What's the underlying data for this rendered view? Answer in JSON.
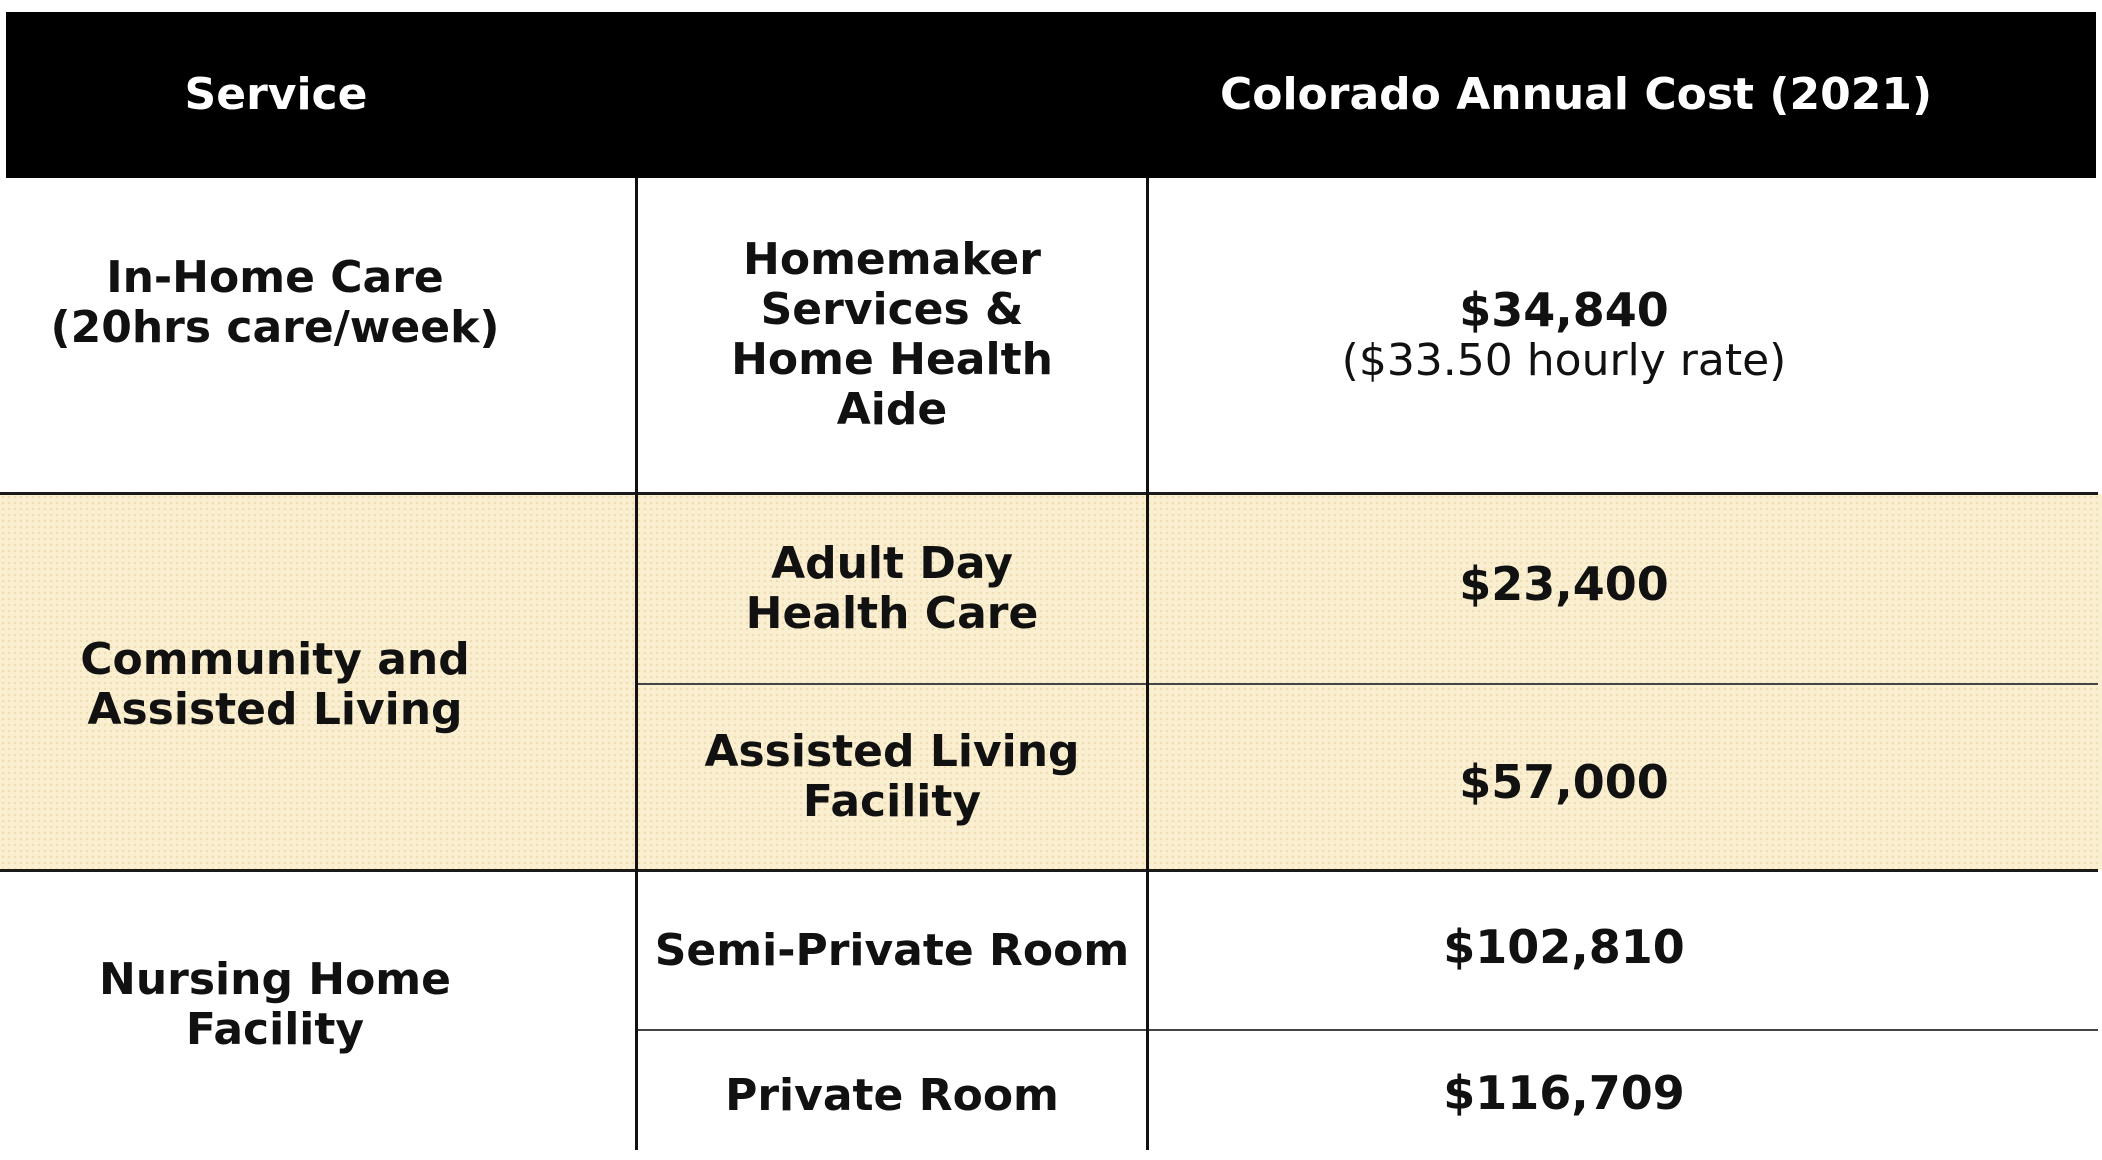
{
  "header": {
    "service_label": "Service",
    "cost_label": "Colorado Annual Cost (2021)"
  },
  "rows": {
    "in_home": {
      "category": "In-Home Care\n(20hrs care/week)",
      "service": "Homemaker\nServices &\nHome Health\nAide",
      "cost": "$34,840",
      "cost_note": "($33.50 hourly rate)"
    },
    "community": {
      "category": "Community and\nAssisted Living",
      "adult_day": {
        "service": "Adult Day\nHealth Care",
        "cost": "$23,400"
      },
      "assisted_living": {
        "service": "Assisted Living\nFacility",
        "cost": "$57,000"
      }
    },
    "nursing": {
      "category": "Nursing Home\nFacility",
      "semi_private": {
        "service": "Semi-Private Room",
        "cost": "$102,810"
      },
      "private": {
        "service": "Private Room",
        "cost": "$116,709"
      }
    }
  },
  "colors": {
    "header_bg": "#000000",
    "header_text": "#ffffff",
    "highlight_band": "#fbefd2"
  }
}
